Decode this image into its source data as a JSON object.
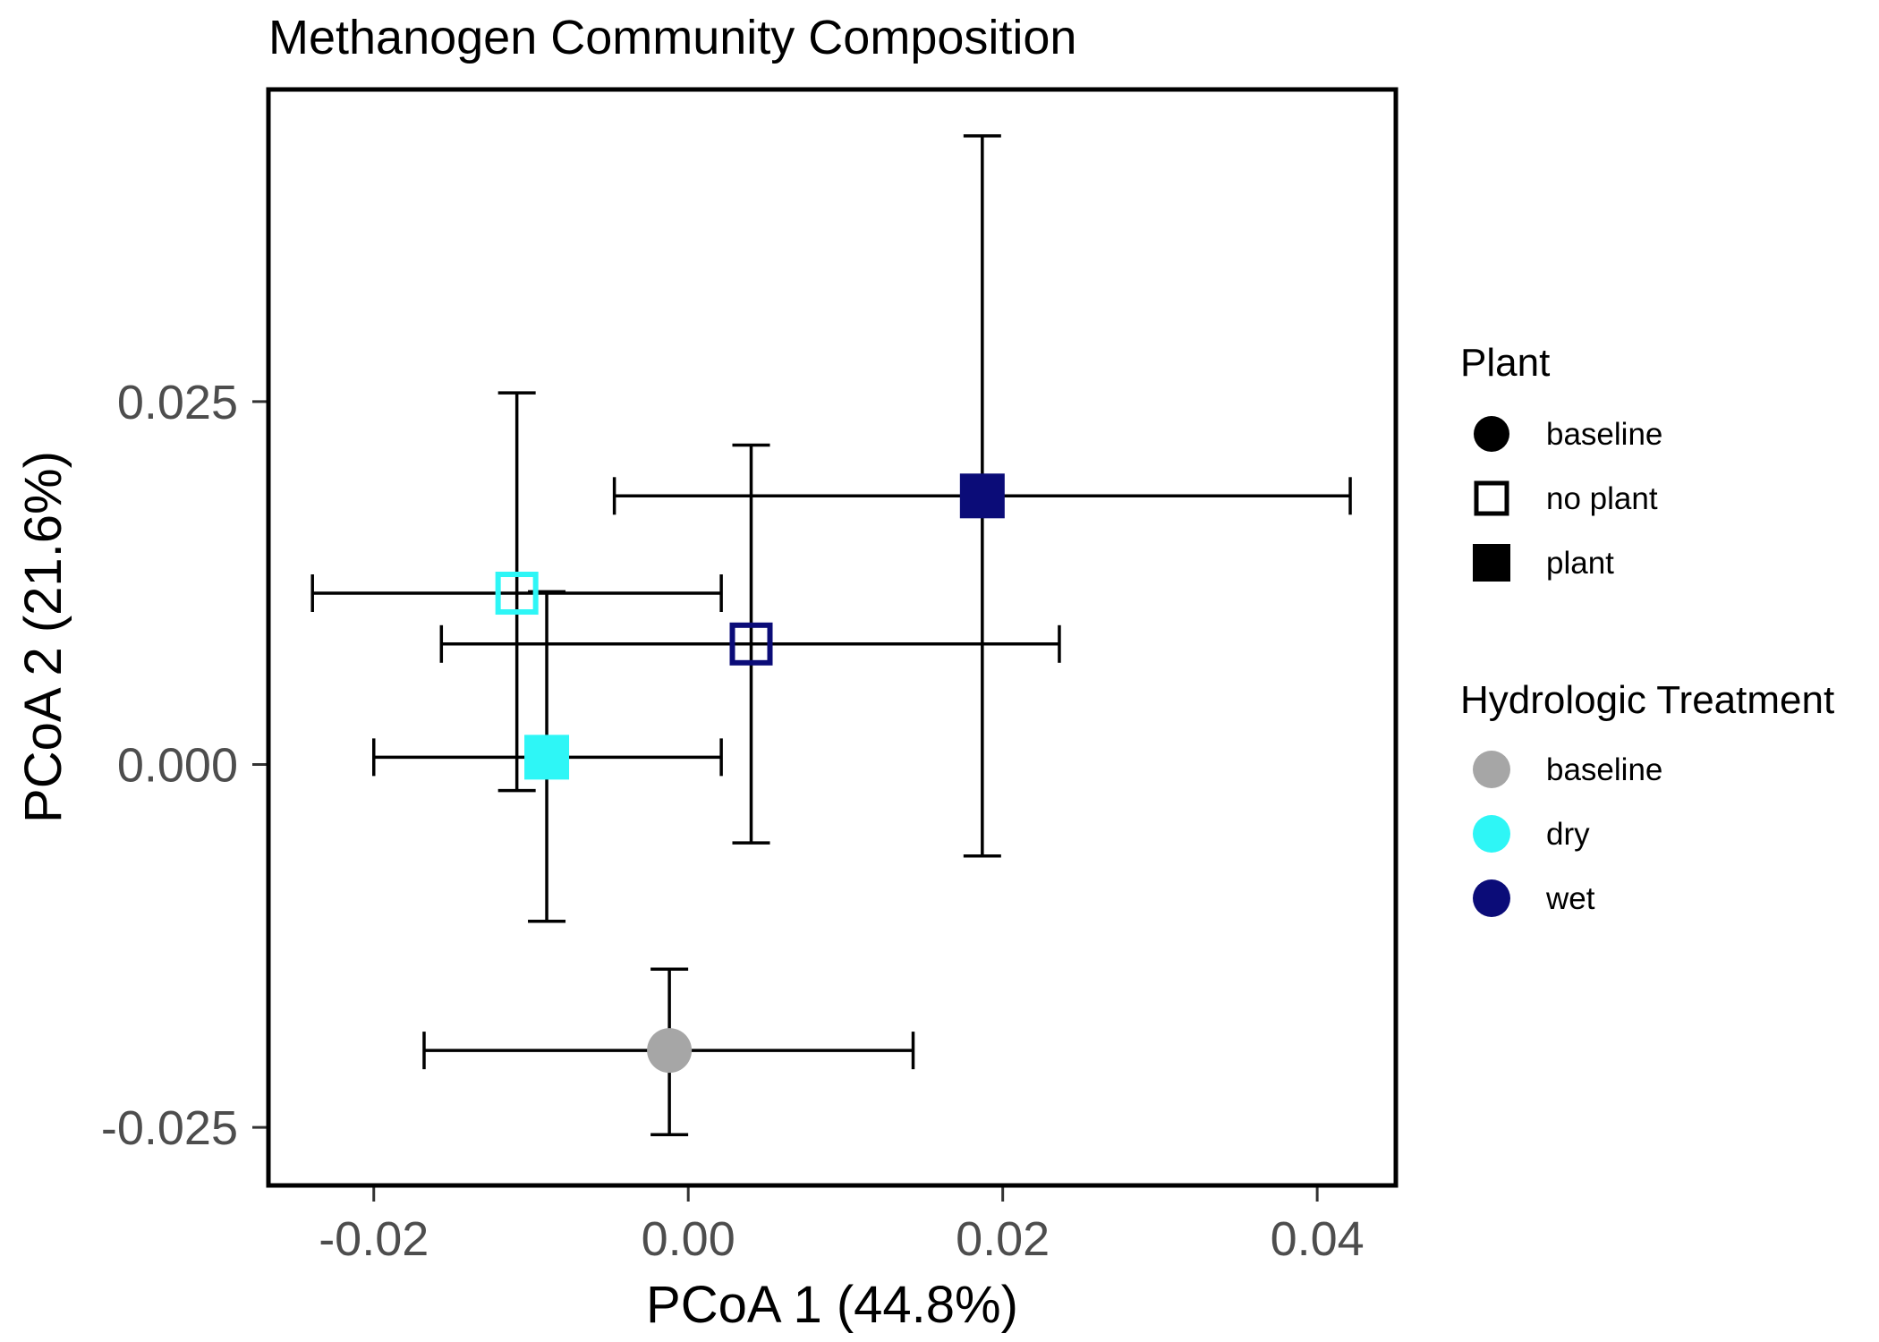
{
  "chart_data": {
    "type": "scatter",
    "title": "Methanogen Community Composition",
    "xlabel": "PCoA 1 (44.8%)",
    "ylabel": "PCoA 2 (21.6%)",
    "xlim": [
      -0.0267,
      0.045
    ],
    "ylim": [
      -0.029,
      0.0465
    ],
    "xticks": [
      {
        "value": -0.02,
        "label": "-0.02"
      },
      {
        "value": 0.0,
        "label": "0.00"
      },
      {
        "value": 0.02,
        "label": "0.02"
      },
      {
        "value": 0.04,
        "label": "0.04"
      }
    ],
    "yticks": [
      {
        "value": -0.025,
        "label": "-0.025"
      },
      {
        "value": 0.0,
        "label": "0.000"
      },
      {
        "value": 0.025,
        "label": "0.025"
      }
    ],
    "grid": false,
    "legend_position": "right",
    "points": [
      {
        "plant": "baseline",
        "hydro": "baseline",
        "x": -0.0012,
        "y": -0.0197,
        "xmin": -0.0168,
        "xmax": 0.0143,
        "ymin": -0.0255,
        "ymax": -0.0141
      },
      {
        "plant": "no plant",
        "hydro": "dry",
        "x": -0.0109,
        "y": 0.0118,
        "xmin": -0.0239,
        "xmax": 0.0021,
        "ymin": -0.0018,
        "ymax": 0.0256
      },
      {
        "plant": "plant",
        "hydro": "dry",
        "x": -0.009,
        "y": 0.0005,
        "xmin": -0.02,
        "xmax": 0.0021,
        "ymin": -0.0108,
        "ymax": 0.0119
      },
      {
        "plant": "no plant",
        "hydro": "wet",
        "x": 0.004,
        "y": 0.0083,
        "xmin": -0.0157,
        "xmax": 0.0236,
        "ymin": -0.0054,
        "ymax": 0.022
      },
      {
        "plant": "plant",
        "hydro": "wet",
        "x": 0.0187,
        "y": 0.0185,
        "xmin": -0.0047,
        "xmax": 0.0421,
        "ymin": -0.0063,
        "ymax": 0.0433
      }
    ],
    "legends": [
      {
        "title": "Plant",
        "items": [
          {
            "label": "baseline",
            "shape": "circle-filled"
          },
          {
            "label": "no plant",
            "shape": "square-open"
          },
          {
            "label": "plant",
            "shape": "square-filled"
          }
        ]
      },
      {
        "title": "Hydrologic Treatment",
        "items": [
          {
            "label": "baseline",
            "color": "#a6a6a6"
          },
          {
            "label": "dry",
            "color": "#2ef6f6"
          },
          {
            "label": "wet",
            "color": "#0b0c78"
          }
        ]
      }
    ]
  }
}
